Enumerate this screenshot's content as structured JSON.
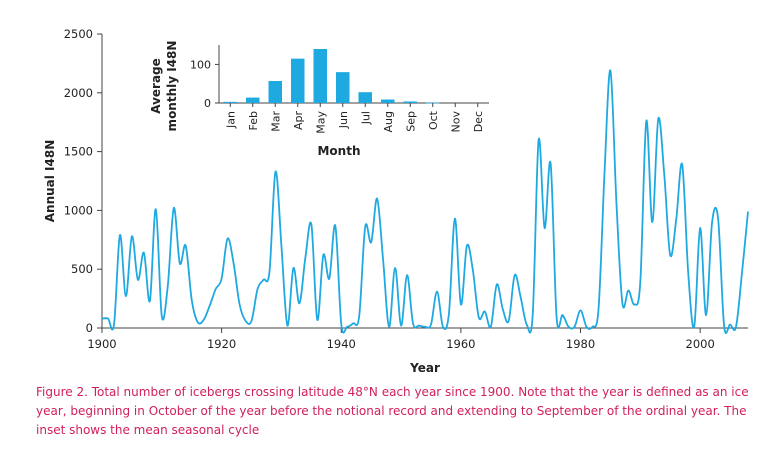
{
  "caption": "Figure 2. Total number of icebergs crossing latitude 48°N each year since 1900. Note that the year is defined as an ice year, beginning in October of the year before the notional record and extending to September of the ordinal year. The inset shows the mean seasonal cycle",
  "colors": {
    "line": "#1ea9e1",
    "bar": "#1ea9e1",
    "axis": "#444444",
    "caption": "#d0205a"
  },
  "chart_data": [
    {
      "type": "line",
      "xlabel": "Year",
      "ylabel": "Annual I48N",
      "xlim": [
        1900,
        2008
      ],
      "ylim": [
        0,
        2500
      ],
      "xticks": [
        1900,
        1920,
        1940,
        1960,
        1980,
        2000
      ],
      "yticks": [
        0,
        500,
        1000,
        1500,
        2000,
        2500
      ],
      "series": [
        {
          "x": [
            1900,
            1901,
            1902,
            1903,
            1904,
            1905,
            1906,
            1907,
            1908,
            1909,
            1910,
            1911,
            1912,
            1913,
            1914,
            1915,
            1916,
            1917,
            1918,
            1919,
            1920,
            1921,
            1922,
            1923,
            1924,
            1925,
            1926,
            1927,
            1928,
            1929,
            1930,
            1931,
            1932,
            1933,
            1934,
            1935,
            1936,
            1937,
            1938,
            1939,
            1940,
            1941,
            1942,
            1943,
            1944,
            1945,
            1946,
            1947,
            1948,
            1949,
            1950,
            1951,
            1952,
            1953,
            1954,
            1955,
            1956,
            1957,
            1958,
            1959,
            1960,
            1961,
            1962,
            1963,
            1964,
            1965,
            1966,
            1967,
            1968,
            1969,
            1970,
            1971,
            1972,
            1973,
            1974,
            1975,
            1976,
            1977,
            1978,
            1979,
            1980,
            1981,
            1982,
            1983,
            1984,
            1985,
            1986,
            1987,
            1988,
            1989,
            1990,
            1991,
            1992,
            1993,
            1994,
            1995,
            1996,
            1997,
            1998,
            1999,
            2000,
            2001,
            2002,
            2003,
            2004,
            2005,
            2006,
            2007,
            2008
          ],
          "y": [
            80,
            80,
            30,
            790,
            270,
            780,
            410,
            640,
            230,
            1010,
            100,
            360,
            1020,
            550,
            700,
            240,
            50,
            70,
            190,
            330,
            420,
            760,
            550,
            200,
            60,
            60,
            330,
            410,
            480,
            1330,
            700,
            20,
            510,
            210,
            600,
            880,
            70,
            620,
            420,
            870,
            30,
            10,
            40,
            100,
            860,
            730,
            1100,
            580,
            10,
            510,
            20,
            450,
            40,
            20,
            10,
            30,
            310,
            10,
            120,
            930,
            200,
            700,
            490,
            90,
            140,
            10,
            370,
            160,
            60,
            450,
            260,
            30,
            110,
            1600,
            850,
            1400,
            90,
            110,
            10,
            10,
            150,
            10,
            10,
            160,
            1300,
            2190,
            1070,
            210,
            320,
            200,
            390,
            1760,
            900,
            1780,
            1300,
            620,
            920,
            1390,
            470,
            10,
            850,
            110,
            900,
            930,
            20,
            30,
            10,
            470,
            990
          ]
        }
      ]
    },
    {
      "type": "bar",
      "xlabel": "Month",
      "ylabel": "Average monthly I48N",
      "ylim": [
        0,
        140
      ],
      "yticks": [
        0,
        100
      ],
      "categories": [
        "Jan",
        "Feb",
        "Mar",
        "Apr",
        "May",
        "Jun",
        "Jul",
        "Aug",
        "Sep",
        "Oct",
        "Nov",
        "Dec"
      ],
      "values": [
        3,
        14,
        57,
        115,
        140,
        80,
        28,
        9,
        4,
        1,
        0,
        0
      ]
    }
  ]
}
